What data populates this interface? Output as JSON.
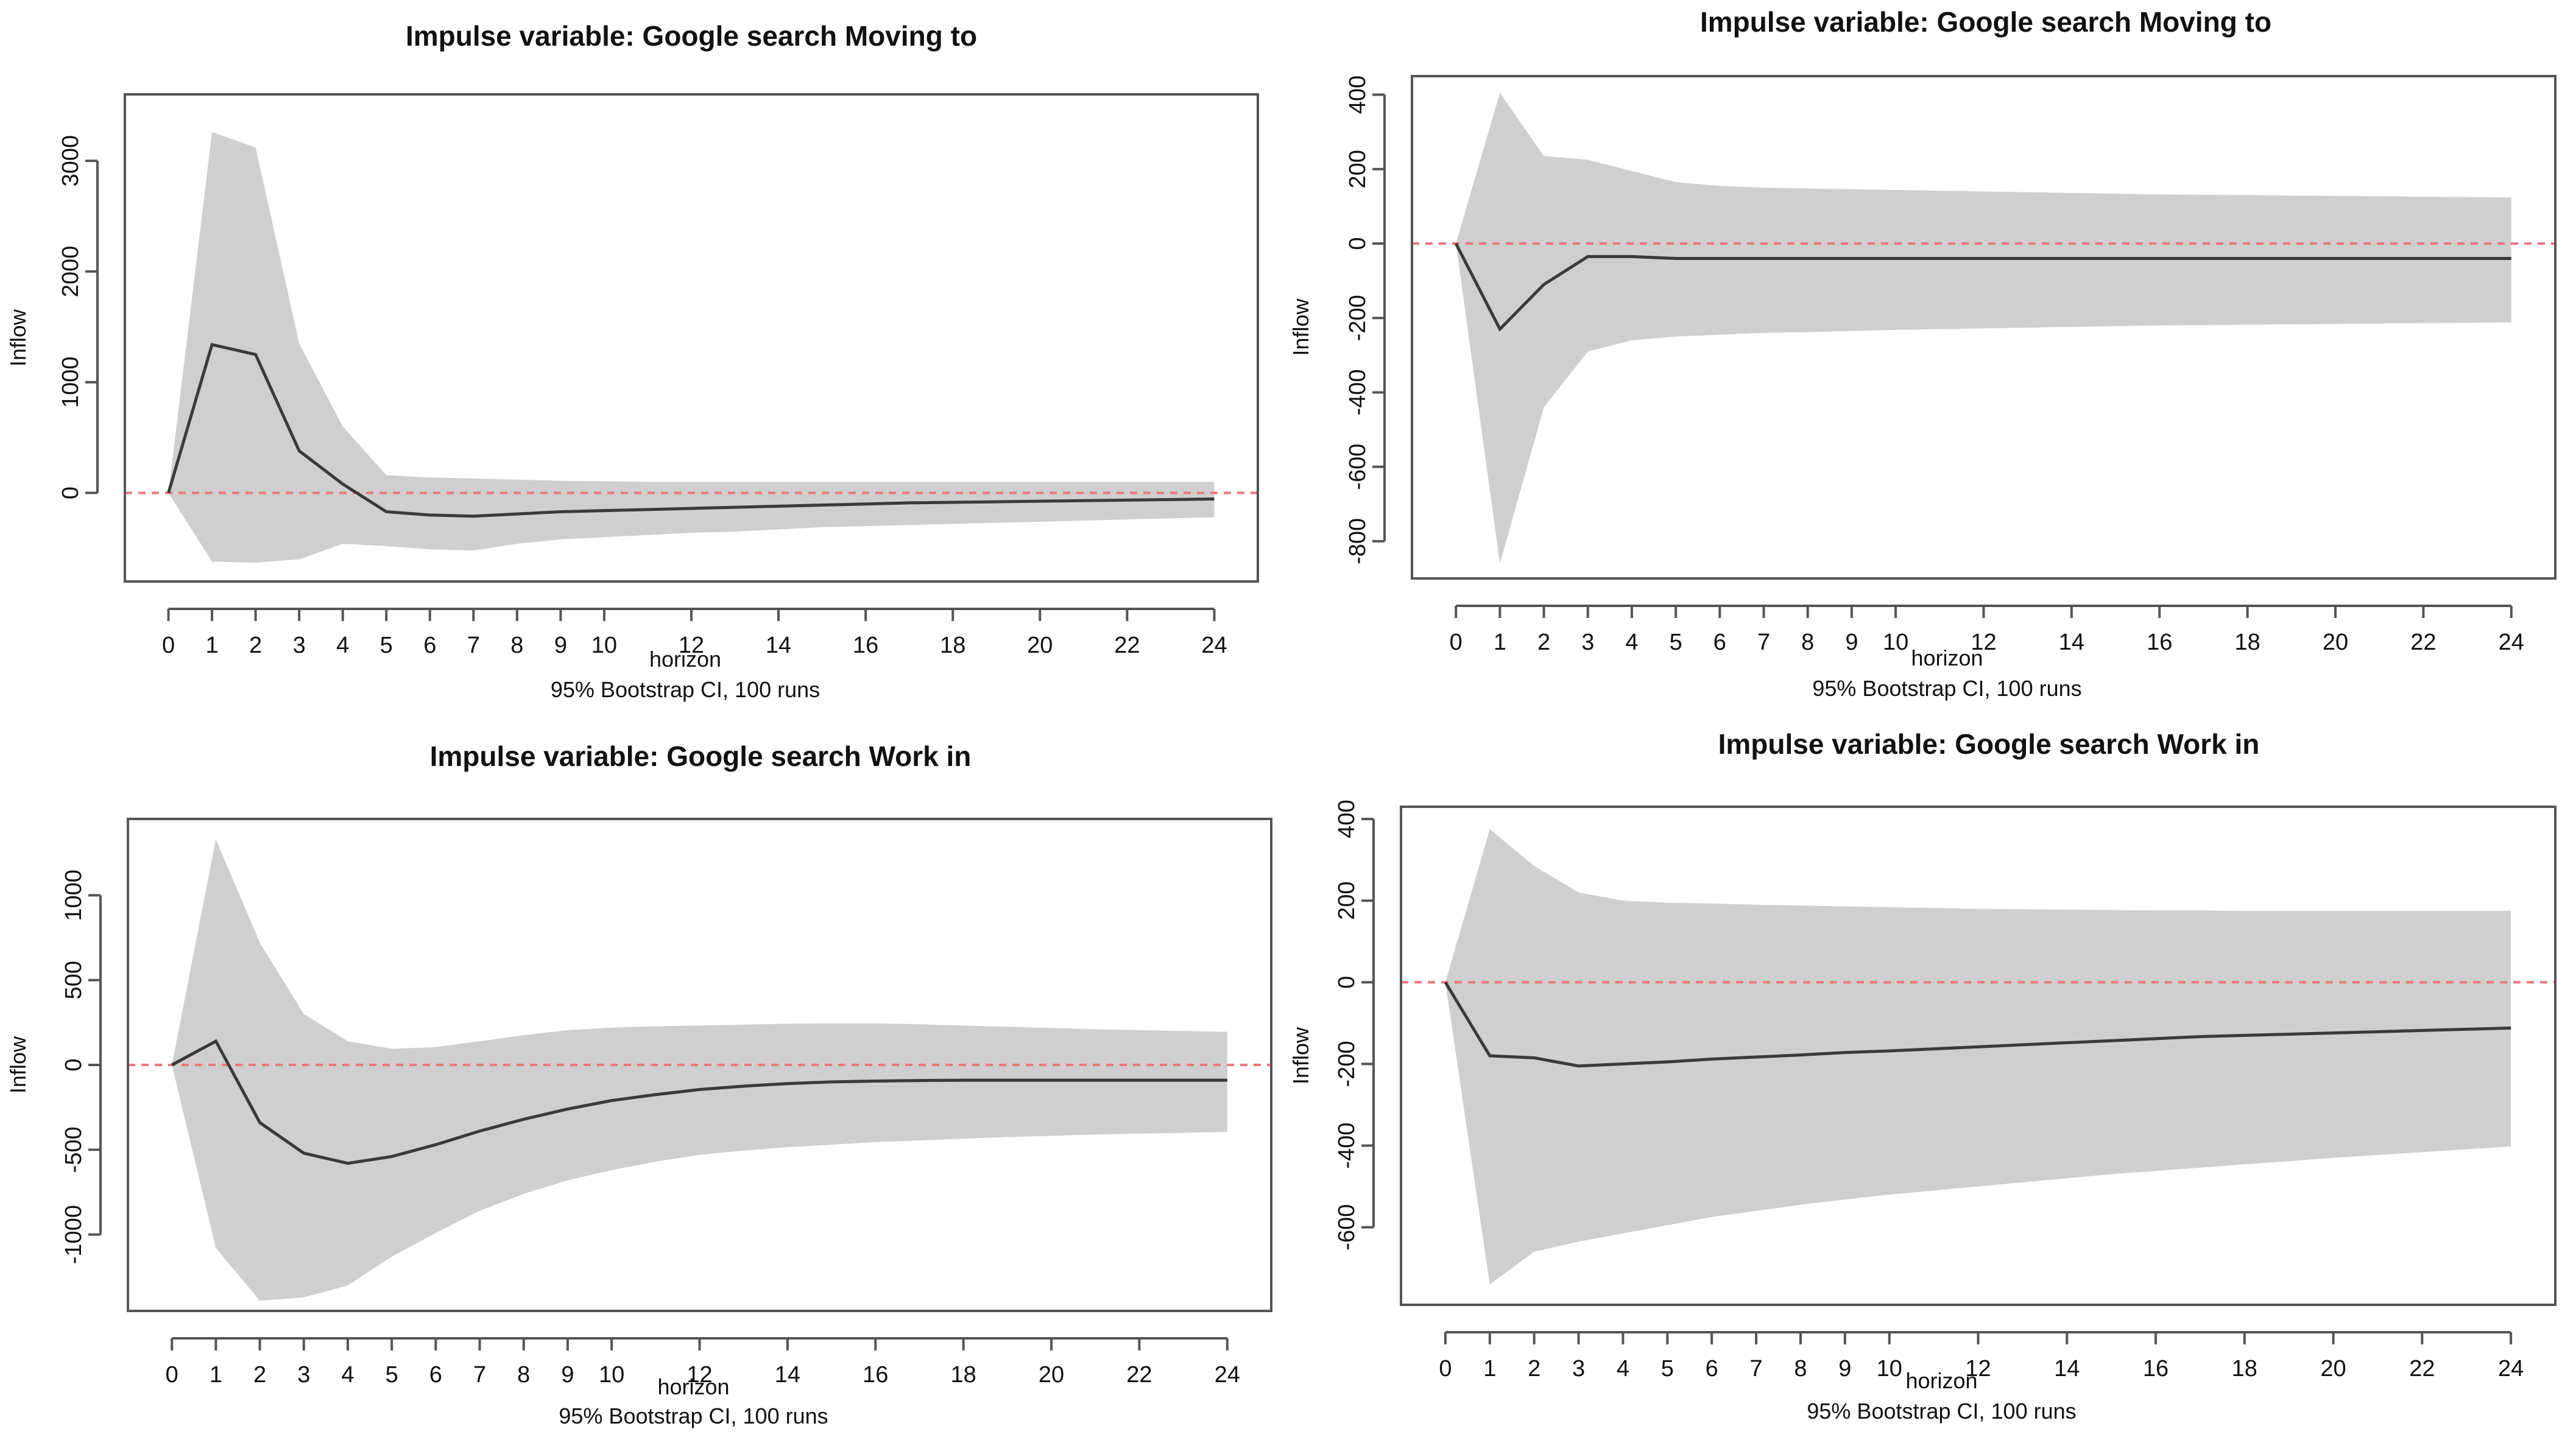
{
  "colors": {
    "band": "#cfcfcf",
    "line": "#3a3a3a",
    "zero_line": "#e8787f",
    "frame": "#555555",
    "text": "#111111"
  },
  "chart_data": [
    {
      "type": "line",
      "title": "Impulse variable: Google  search  Moving  to",
      "xlabel": "horizon",
      "subtitle": "95% Bootstrap CI, 100 runs",
      "ylabel": "Inflow",
      "ylim": [
        -800,
        3600
      ],
      "xlim": [
        -1,
        25
      ],
      "xticks": [
        0,
        1,
        2,
        3,
        4,
        5,
        6,
        7,
        8,
        9,
        10,
        12,
        14,
        16,
        18,
        20,
        22,
        24
      ],
      "yticks": [
        0,
        1000,
        2000,
        3000
      ],
      "x": [
        0,
        1,
        2,
        3,
        4,
        5,
        6,
        7,
        8,
        9,
        10,
        11,
        12,
        13,
        14,
        15,
        16,
        17,
        18,
        19,
        20,
        21,
        22,
        23,
        24
      ],
      "series": [
        {
          "name": "irf",
          "values": [
            0,
            1340,
            1250,
            380,
            80,
            -170,
            -200,
            -210,
            -190,
            -170,
            -160,
            -150,
            -140,
            -130,
            -120,
            -110,
            -100,
            -90,
            -85,
            -80,
            -75,
            -70,
            -65,
            -60,
            -55
          ]
        },
        {
          "name": "lower",
          "values": [
            0,
            -620,
            -630,
            -600,
            -460,
            -480,
            -510,
            -520,
            -460,
            -420,
            -400,
            -380,
            -360,
            -350,
            -330,
            -310,
            -300,
            -290,
            -280,
            -270,
            -260,
            -250,
            -240,
            -230,
            -220
          ]
        },
        {
          "name": "upper",
          "values": [
            0,
            3260,
            3120,
            1350,
            600,
            160,
            140,
            130,
            120,
            110,
            105,
            100,
            100,
            100,
            100,
            100,
            100,
            100,
            100,
            100,
            100,
            100,
            100,
            100,
            100
          ]
        }
      ]
    },
    {
      "type": "line",
      "title": "Impulse variable: Google  search  Moving  to",
      "xlabel": "horizon",
      "subtitle": "95% Bootstrap CI, 100 runs",
      "ylabel": "Inflow",
      "ylim": [
        -900,
        450
      ],
      "xlim": [
        -1,
        25
      ],
      "xticks": [
        0,
        1,
        2,
        3,
        4,
        5,
        6,
        7,
        8,
        9,
        10,
        12,
        14,
        16,
        18,
        20,
        22,
        24
      ],
      "yticks": [
        -800,
        -600,
        -400,
        -200,
        0,
        200,
        400
      ],
      "x": [
        0,
        1,
        2,
        3,
        4,
        5,
        6,
        7,
        8,
        9,
        10,
        11,
        12,
        13,
        14,
        15,
        16,
        17,
        18,
        19,
        20,
        21,
        22,
        23,
        24
      ],
      "series": [
        {
          "name": "irf",
          "values": [
            0,
            -230,
            -110,
            -35,
            -35,
            -40,
            -40,
            -40,
            -40,
            -40,
            -40,
            -40,
            -40,
            -40,
            -40,
            -40,
            -40,
            -40,
            -40,
            -40,
            -40,
            -40,
            -40,
            -40,
            -40
          ]
        },
        {
          "name": "lower",
          "values": [
            0,
            -860,
            -440,
            -290,
            -260,
            -250,
            -245,
            -240,
            -238,
            -235,
            -232,
            -230,
            -228,
            -226,
            -224,
            -222,
            -220,
            -219,
            -218,
            -217,
            -216,
            -215,
            -214,
            -213,
            -212
          ]
        },
        {
          "name": "upper",
          "values": [
            0,
            405,
            235,
            225,
            195,
            165,
            155,
            150,
            148,
            146,
            144,
            142,
            140,
            138,
            136,
            134,
            132,
            131,
            130,
            129,
            128,
            127,
            126,
            125,
            124
          ]
        }
      ]
    },
    {
      "type": "line",
      "title": "Impulse variable: Google  search  Work  in",
      "xlabel": "horizon",
      "subtitle": "95% Bootstrap CI, 100 runs",
      "ylabel": "Inflow",
      "ylim": [
        -1450,
        1450
      ],
      "xlim": [
        -1,
        25
      ],
      "xticks": [
        0,
        1,
        2,
        3,
        4,
        5,
        6,
        7,
        8,
        9,
        10,
        12,
        14,
        16,
        18,
        20,
        22,
        24
      ],
      "yticks": [
        -1000,
        -500,
        0,
        500,
        1000
      ],
      "x": [
        0,
        1,
        2,
        3,
        4,
        5,
        6,
        7,
        8,
        9,
        10,
        11,
        12,
        13,
        14,
        15,
        16,
        17,
        18,
        19,
        20,
        21,
        22,
        23,
        24
      ],
      "series": [
        {
          "name": "irf",
          "values": [
            0,
            140,
            -340,
            -520,
            -580,
            -540,
            -470,
            -390,
            -320,
            -260,
            -210,
            -175,
            -145,
            -125,
            -110,
            -100,
            -95,
            -92,
            -90,
            -90,
            -90,
            -90,
            -90,
            -90,
            -90
          ]
        },
        {
          "name": "lower",
          "values": [
            0,
            -1080,
            -1390,
            -1370,
            -1300,
            -1130,
            -990,
            -860,
            -760,
            -680,
            -620,
            -570,
            -530,
            -505,
            -485,
            -470,
            -455,
            -445,
            -435,
            -425,
            -418,
            -410,
            -405,
            -400,
            -395
          ]
        },
        {
          "name": "upper",
          "values": [
            0,
            1330,
            720,
            300,
            140,
            95,
            105,
            140,
            175,
            205,
            220,
            228,
            232,
            238,
            243,
            245,
            245,
            240,
            232,
            225,
            218,
            210,
            205,
            200,
            195
          ]
        }
      ]
    },
    {
      "type": "line",
      "title": "Impulse variable: Google  search  Work  in",
      "xlabel": "horizon",
      "subtitle": "95% Bootstrap CI, 100 runs",
      "ylabel": "Inflow",
      "ylim": [
        -790,
        430
      ],
      "xlim": [
        -1,
        25
      ],
      "xticks": [
        0,
        1,
        2,
        3,
        4,
        5,
        6,
        7,
        8,
        9,
        10,
        12,
        14,
        16,
        18,
        20,
        22,
        24
      ],
      "yticks": [
        -600,
        -400,
        -200,
        0,
        200,
        400
      ],
      "x": [
        0,
        1,
        2,
        3,
        4,
        5,
        6,
        7,
        8,
        9,
        10,
        11,
        12,
        13,
        14,
        15,
        16,
        17,
        18,
        19,
        20,
        21,
        22,
        23,
        24
      ],
      "series": [
        {
          "name": "irf",
          "values": [
            0,
            -180,
            -185,
            -205,
            -200,
            -195,
            -188,
            -183,
            -178,
            -172,
            -168,
            -163,
            -158,
            -153,
            -148,
            -143,
            -138,
            -133,
            -130,
            -127,
            -124,
            -121,
            -118,
            -115,
            -112
          ]
        },
        {
          "name": "lower",
          "values": [
            0,
            -740,
            -660,
            -635,
            -615,
            -595,
            -575,
            -560,
            -545,
            -532,
            -520,
            -510,
            -500,
            -490,
            -480,
            -470,
            -462,
            -454,
            -446,
            -438,
            -430,
            -423,
            -416,
            -409,
            -402
          ]
        },
        {
          "name": "upper",
          "values": [
            0,
            375,
            285,
            220,
            200,
            195,
            193,
            190,
            188,
            186,
            184,
            182,
            180,
            179,
            178,
            177,
            176,
            176,
            175,
            175,
            175,
            175,
            175,
            175,
            175
          ]
        }
      ]
    }
  ]
}
